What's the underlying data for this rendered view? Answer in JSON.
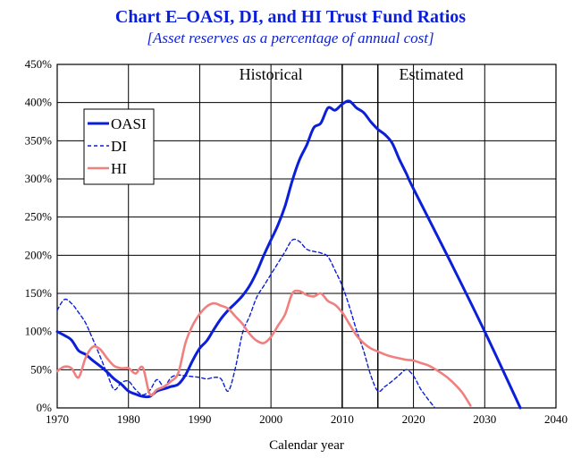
{
  "title": "Chart E–OASI, DI, and HI Trust Fund Ratios",
  "subtitle": "[Asset reserves as a percentage of annual cost]",
  "chart_data": {
    "type": "line",
    "xlabel": "Calendar year",
    "ylabel": "",
    "xlim": [
      1970,
      2040
    ],
    "ylim": [
      0,
      450
    ],
    "xticks": [
      1970,
      1980,
      1990,
      2000,
      2010,
      2020,
      2030,
      2040
    ],
    "yticks": [
      0,
      50,
      100,
      150,
      200,
      250,
      300,
      350,
      400,
      450
    ],
    "ytick_labels": [
      "0%",
      "50%",
      "100%",
      "150%",
      "200%",
      "250%",
      "300%",
      "350%",
      "400%",
      "450%"
    ],
    "grid": true,
    "legend_position": "top-left",
    "regions": [
      {
        "label": "Historical",
        "label_x": 2000
      },
      {
        "label": "Estimated",
        "label_x": 2022.5
      }
    ],
    "dividers": [
      2010,
      2015
    ],
    "series": [
      {
        "name": "OASI",
        "color": "#0b1fd8",
        "style": "solid-thick",
        "x": [
          1970,
          1971,
          1972,
          1973,
          1974,
          1975,
          1976,
          1977,
          1978,
          1979,
          1980,
          1981,
          1982,
          1983,
          1984,
          1985,
          1986,
          1987,
          1988,
          1989,
          1990,
          1991,
          1992,
          1993,
          1994,
          1995,
          1996,
          1997,
          1998,
          1999,
          2000,
          2001,
          2002,
          2003,
          2004,
          2005,
          2006,
          2007,
          2008,
          2009,
          2010,
          2011,
          2012,
          2013,
          2014,
          2015,
          2016,
          2017,
          2018,
          2019,
          2020,
          2025,
          2030,
          2035
        ],
        "values": [
          100,
          95,
          89,
          75,
          70,
          62,
          55,
          47,
          38,
          31,
          22,
          18,
          15,
          15,
          22,
          25,
          28,
          31,
          43,
          62,
          78,
          88,
          103,
          117,
          128,
          137,
          147,
          160,
          178,
          200,
          220,
          240,
          265,
          298,
          325,
          344,
          367,
          373,
          393,
          390,
          398,
          402,
          393,
          387,
          375,
          365,
          358,
          347,
          326,
          307,
          287,
          195,
          100,
          0
        ]
      },
      {
        "name": "DI",
        "color": "#0b1fd8",
        "style": "dashed",
        "x": [
          1970,
          1971,
          1972,
          1973,
          1974,
          1975,
          1976,
          1977,
          1978,
          1979,
          1980,
          1981,
          1982,
          1983,
          1984,
          1985,
          1986,
          1987,
          1988,
          1989,
          1990,
          1991,
          1992,
          1993,
          1994,
          1995,
          1996,
          1997,
          1998,
          1999,
          2000,
          2001,
          2002,
          2003,
          2004,
          2005,
          2006,
          2007,
          2008,
          2009,
          2010,
          2011,
          2012,
          2013,
          2014,
          2015,
          2016,
          2017,
          2018,
          2019,
          2020,
          2021,
          2022,
          2023
        ],
        "values": [
          128,
          142,
          137,
          125,
          111,
          90,
          68,
          45,
          24,
          33,
          35,
          24,
          17,
          23,
          37,
          28,
          40,
          43,
          42,
          41,
          40,
          38,
          40,
          38,
          22,
          52,
          98,
          120,
          145,
          160,
          175,
          190,
          205,
          220,
          218,
          208,
          205,
          203,
          198,
          180,
          160,
          133,
          102,
          75,
          43,
          22,
          28,
          35,
          43,
          50,
          42,
          25,
          12,
          0
        ]
      },
      {
        "name": "HI",
        "color": "#f08080",
        "style": "solid",
        "x": [
          1970,
          1971,
          1972,
          1973,
          1974,
          1975,
          1976,
          1977,
          1978,
          1979,
          1980,
          1981,
          1982,
          1983,
          1984,
          1985,
          1986,
          1987,
          1988,
          1989,
          1990,
          1991,
          1992,
          1993,
          1994,
          1995,
          1996,
          1997,
          1998,
          1999,
          2000,
          2001,
          2002,
          2003,
          2004,
          2005,
          2006,
          2007,
          2008,
          2009,
          2010,
          2011,
          2012,
          2013,
          2014,
          2015,
          2016,
          2017,
          2018,
          2019,
          2020,
          2021,
          2022,
          2023,
          2024,
          2025,
          2026,
          2027,
          2028
        ],
        "values": [
          48,
          54,
          52,
          40,
          66,
          80,
          77,
          65,
          55,
          52,
          52,
          45,
          53,
          18,
          24,
          28,
          35,
          46,
          85,
          108,
          123,
          133,
          137,
          134,
          130,
          120,
          110,
          97,
          88,
          85,
          93,
          108,
          123,
          150,
          153,
          148,
          146,
          150,
          140,
          135,
          125,
          110,
          95,
          85,
          78,
          74,
          70,
          67,
          65,
          63,
          62,
          59,
          56,
          51,
          45,
          38,
          29,
          18,
          3
        ]
      }
    ]
  }
}
